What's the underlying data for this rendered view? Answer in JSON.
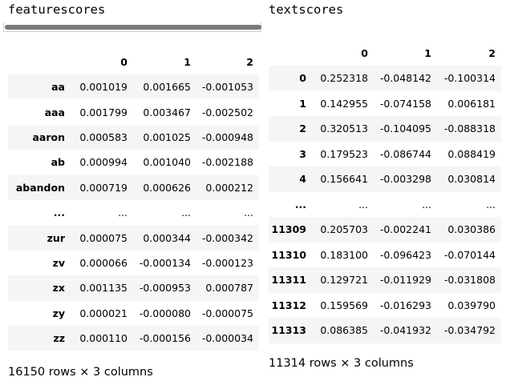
{
  "left_output": {
    "code_text": "featurescores",
    "columns": [
      "",
      "0",
      "1",
      "2"
    ],
    "rows": [
      {
        "index": "aa",
        "values": [
          "0.001019",
          "0.001665",
          "-0.001053"
        ]
      },
      {
        "index": "aaa",
        "values": [
          "0.001799",
          "0.003467",
          "-0.002502"
        ]
      },
      {
        "index": "aaron",
        "values": [
          "0.000583",
          "0.001025",
          "-0.000948"
        ]
      },
      {
        "index": "ab",
        "values": [
          "0.000994",
          "0.001040",
          "-0.002188"
        ]
      },
      {
        "index": "abandon",
        "values": [
          "0.000719",
          "0.000626",
          "0.000212"
        ]
      },
      {
        "index": "...",
        "values": [
          "...",
          "...",
          "..."
        ]
      },
      {
        "index": "zur",
        "values": [
          "0.000075",
          "0.000344",
          "-0.000342"
        ]
      },
      {
        "index": "zv",
        "values": [
          "0.000066",
          "-0.000134",
          "-0.000123"
        ]
      },
      {
        "index": "zx",
        "values": [
          "0.001135",
          "-0.000953",
          "0.000787"
        ]
      },
      {
        "index": "zy",
        "values": [
          "0.000021",
          "-0.000080",
          "-0.000075"
        ]
      },
      {
        "index": "zz",
        "values": [
          "0.000110",
          "-0.000156",
          "-0.000034"
        ]
      }
    ],
    "shape_text": "16150 rows × 3 columns"
  },
  "right_output": {
    "code_text": "textscores",
    "columns": [
      "",
      "0",
      "1",
      "2"
    ],
    "rows": [
      {
        "index": "0",
        "values": [
          "0.252318",
          "-0.048142",
          "-0.100314"
        ]
      },
      {
        "index": "1",
        "values": [
          "0.142955",
          "-0.074158",
          "0.006181"
        ]
      },
      {
        "index": "2",
        "values": [
          "0.320513",
          "-0.104095",
          "-0.088318"
        ]
      },
      {
        "index": "3",
        "values": [
          "0.179523",
          "-0.086744",
          "0.088419"
        ]
      },
      {
        "index": "4",
        "values": [
          "0.156641",
          "-0.003298",
          "0.030814"
        ]
      },
      {
        "index": "...",
        "values": [
          "...",
          "...",
          "..."
        ]
      },
      {
        "index": "11309",
        "values": [
          "0.205703",
          "-0.002241",
          "0.030386"
        ]
      },
      {
        "index": "11310",
        "values": [
          "0.183100",
          "-0.096423",
          "-0.070144"
        ]
      },
      {
        "index": "11311",
        "values": [
          "0.129721",
          "-0.011929",
          "-0.031808"
        ]
      },
      {
        "index": "11312",
        "values": [
          "0.159569",
          "-0.016293",
          "0.039790"
        ]
      },
      {
        "index": "11313",
        "values": [
          "0.086385",
          "-0.041932",
          "-0.034792"
        ]
      }
    ],
    "shape_text": "11314 rows × 3 columns"
  },
  "colors": {
    "row_stripe": "#f5f5f5",
    "scrollbar": "#7a7a7a"
  }
}
